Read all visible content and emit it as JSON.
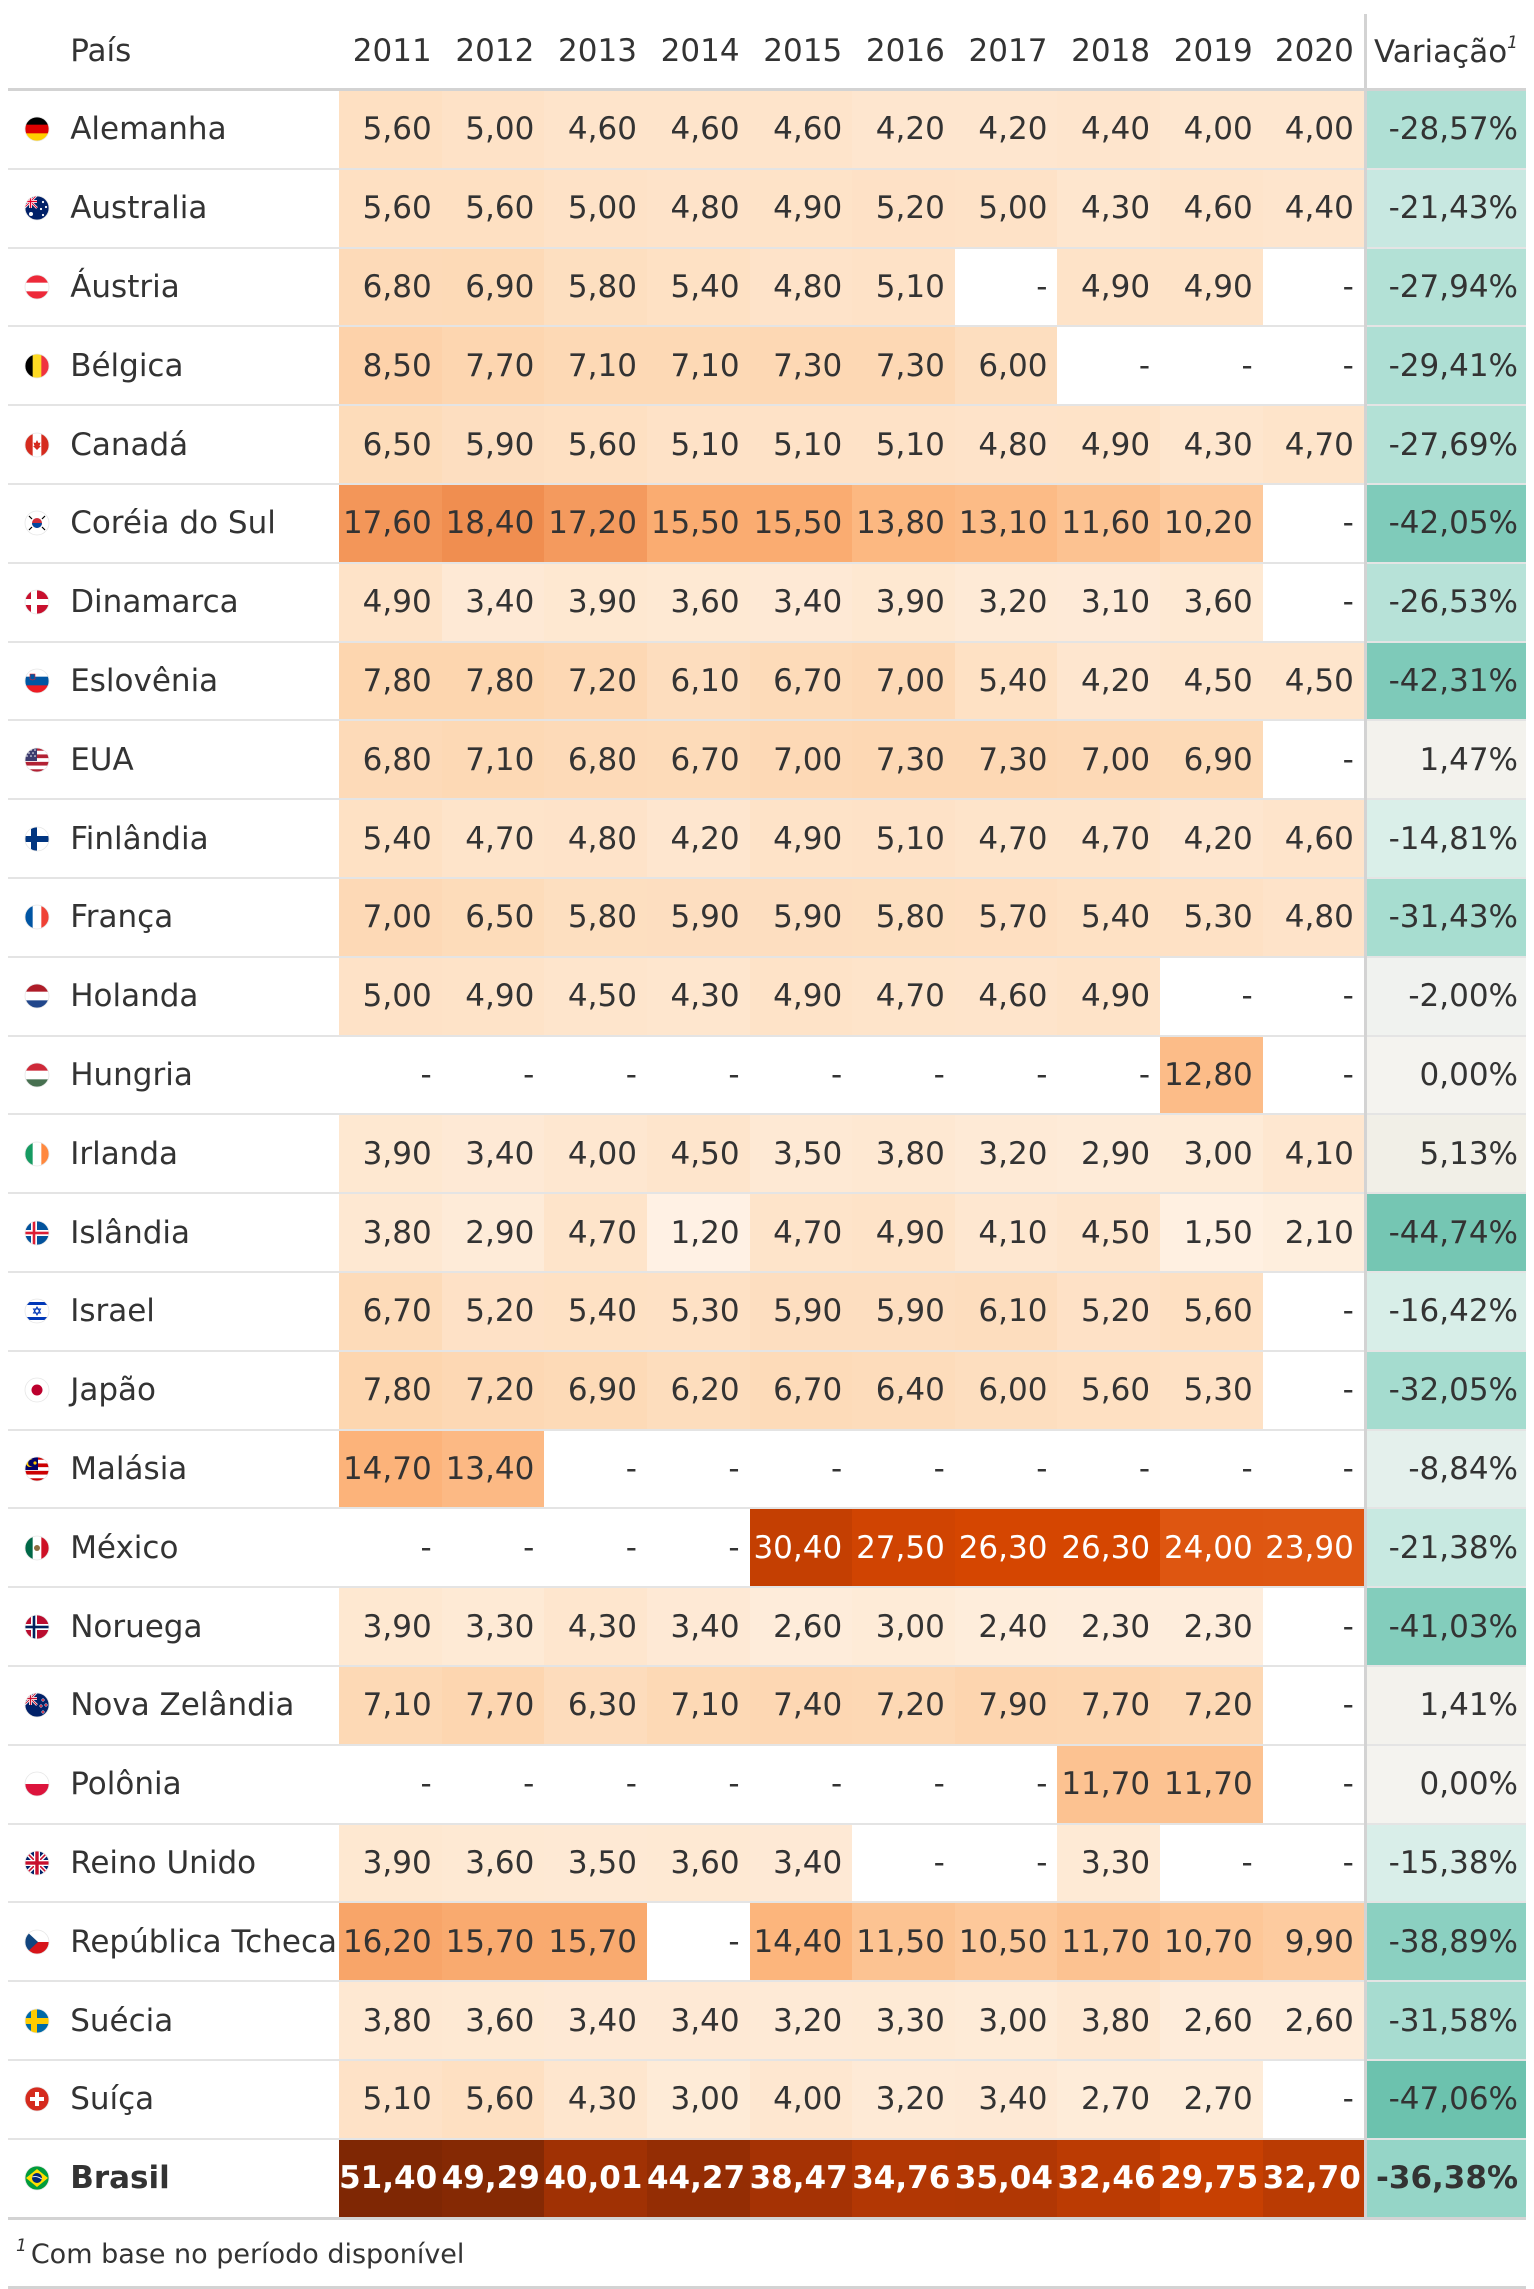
{
  "table": {
    "header": {
      "country": "País",
      "years": [
        "2011",
        "2012",
        "2013",
        "2014",
        "2015",
        "2016",
        "2017",
        "2018",
        "2019",
        "2020"
      ],
      "variation": "Variação",
      "variation_note_marker": "1"
    },
    "rows": [
      {
        "country": "Alemanha",
        "flag": "germany-flag-icon",
        "values": [
          "5,60",
          "5,00",
          "4,60",
          "4,60",
          "4,60",
          "4,20",
          "4,20",
          "4,40",
          "4,00",
          "4,00"
        ],
        "variation": "-28,57%"
      },
      {
        "country": "Australia",
        "flag": "australia-flag-icon",
        "values": [
          "5,60",
          "5,60",
          "5,00",
          "4,80",
          "4,90",
          "5,20",
          "5,00",
          "4,30",
          "4,60",
          "4,40"
        ],
        "variation": "-21,43%"
      },
      {
        "country": "Áustria",
        "flag": "austria-flag-icon",
        "values": [
          "6,80",
          "6,90",
          "5,80",
          "5,40",
          "4,80",
          "5,10",
          "-",
          "4,90",
          "4,90",
          "-"
        ],
        "variation": "-27,94%"
      },
      {
        "country": "Bélgica",
        "flag": "belgium-flag-icon",
        "values": [
          "8,50",
          "7,70",
          "7,10",
          "7,10",
          "7,30",
          "7,30",
          "6,00",
          "-",
          "-",
          "-"
        ],
        "variation": "-29,41%"
      },
      {
        "country": "Canadá",
        "flag": "canada-flag-icon",
        "values": [
          "6,50",
          "5,90",
          "5,60",
          "5,10",
          "5,10",
          "5,10",
          "4,80",
          "4,90",
          "4,30",
          "4,70"
        ],
        "variation": "-27,69%"
      },
      {
        "country": "Coréia do Sul",
        "flag": "south-korea-flag-icon",
        "values": [
          "17,60",
          "18,40",
          "17,20",
          "15,50",
          "15,50",
          "13,80",
          "13,10",
          "11,60",
          "10,20",
          "-"
        ],
        "variation": "-42,05%"
      },
      {
        "country": "Dinamarca",
        "flag": "denmark-flag-icon",
        "values": [
          "4,90",
          "3,40",
          "3,90",
          "3,60",
          "3,40",
          "3,90",
          "3,20",
          "3,10",
          "3,60",
          "-"
        ],
        "variation": "-26,53%"
      },
      {
        "country": "Eslovênia",
        "flag": "slovenia-flag-icon",
        "values": [
          "7,80",
          "7,80",
          "7,20",
          "6,10",
          "6,70",
          "7,00",
          "5,40",
          "4,20",
          "4,50",
          "4,50"
        ],
        "variation": "-42,31%"
      },
      {
        "country": "EUA",
        "flag": "usa-flag-icon",
        "values": [
          "6,80",
          "7,10",
          "6,80",
          "6,70",
          "7,00",
          "7,30",
          "7,30",
          "7,00",
          "6,90",
          "-"
        ],
        "variation": "1,47%"
      },
      {
        "country": "Finlândia",
        "flag": "finland-flag-icon",
        "values": [
          "5,40",
          "4,70",
          "4,80",
          "4,20",
          "4,90",
          "5,10",
          "4,70",
          "4,70",
          "4,20",
          "4,60"
        ],
        "variation": "-14,81%"
      },
      {
        "country": "França",
        "flag": "france-flag-icon",
        "values": [
          "7,00",
          "6,50",
          "5,80",
          "5,90",
          "5,90",
          "5,80",
          "5,70",
          "5,40",
          "5,30",
          "4,80"
        ],
        "variation": "-31,43%"
      },
      {
        "country": "Holanda",
        "flag": "netherlands-flag-icon",
        "values": [
          "5,00",
          "4,90",
          "4,50",
          "4,30",
          "4,90",
          "4,70",
          "4,60",
          "4,90",
          "-",
          "-"
        ],
        "variation": "-2,00%"
      },
      {
        "country": "Hungria",
        "flag": "hungary-flag-icon",
        "values": [
          "-",
          "-",
          "-",
          "-",
          "-",
          "-",
          "-",
          "-",
          "12,80",
          "-"
        ],
        "variation": "0,00%"
      },
      {
        "country": "Irlanda",
        "flag": "ireland-flag-icon",
        "values": [
          "3,90",
          "3,40",
          "4,00",
          "4,50",
          "3,50",
          "3,80",
          "3,20",
          "2,90",
          "3,00",
          "4,10"
        ],
        "variation": "5,13%"
      },
      {
        "country": "Islândia",
        "flag": "iceland-flag-icon",
        "values": [
          "3,80",
          "2,90",
          "4,70",
          "1,20",
          "4,70",
          "4,90",
          "4,10",
          "4,50",
          "1,50",
          "2,10"
        ],
        "variation": "-44,74%"
      },
      {
        "country": "Israel",
        "flag": "israel-flag-icon",
        "values": [
          "6,70",
          "5,20",
          "5,40",
          "5,30",
          "5,90",
          "5,90",
          "6,10",
          "5,20",
          "5,60",
          "-"
        ],
        "variation": "-16,42%"
      },
      {
        "country": "Japão",
        "flag": "japan-flag-icon",
        "values": [
          "7,80",
          "7,20",
          "6,90",
          "6,20",
          "6,70",
          "6,40",
          "6,00",
          "5,60",
          "5,30",
          "-"
        ],
        "variation": "-32,05%"
      },
      {
        "country": "Malásia",
        "flag": "malaysia-flag-icon",
        "values": [
          "14,70",
          "13,40",
          "-",
          "-",
          "-",
          "-",
          "-",
          "-",
          "-",
          "-"
        ],
        "variation": "-8,84%"
      },
      {
        "country": "México",
        "flag": "mexico-flag-icon",
        "values": [
          "-",
          "-",
          "-",
          "-",
          "30,40",
          "27,50",
          "26,30",
          "26,30",
          "24,00",
          "23,90"
        ],
        "variation": "-21,38%"
      },
      {
        "country": "Noruega",
        "flag": "norway-flag-icon",
        "values": [
          "3,90",
          "3,30",
          "4,30",
          "3,40",
          "2,60",
          "3,00",
          "2,40",
          "2,30",
          "2,30",
          "-"
        ],
        "variation": "-41,03%"
      },
      {
        "country": "Nova Zelândia",
        "flag": "new-zealand-flag-icon",
        "values": [
          "7,10",
          "7,70",
          "6,30",
          "7,10",
          "7,40",
          "7,20",
          "7,90",
          "7,70",
          "7,20",
          "-"
        ],
        "variation": "1,41%"
      },
      {
        "country": "Polônia",
        "flag": "poland-flag-icon",
        "values": [
          "-",
          "-",
          "-",
          "-",
          "-",
          "-",
          "-",
          "11,70",
          "11,70",
          "-"
        ],
        "variation": "0,00%"
      },
      {
        "country": "Reino Unido",
        "flag": "uk-flag-icon",
        "values": [
          "3,90",
          "3,60",
          "3,50",
          "3,60",
          "3,40",
          "-",
          "-",
          "3,30",
          "-",
          "-"
        ],
        "variation": "-15,38%"
      },
      {
        "country": "República Tcheca",
        "flag": "czech-flag-icon",
        "values": [
          "16,20",
          "15,70",
          "15,70",
          "-",
          "14,40",
          "11,50",
          "10,50",
          "11,70",
          "10,70",
          "9,90"
        ],
        "variation": "-38,89%"
      },
      {
        "country": "Suécia",
        "flag": "sweden-flag-icon",
        "values": [
          "3,80",
          "3,60",
          "3,40",
          "3,40",
          "3,20",
          "3,30",
          "3,00",
          "3,80",
          "2,60",
          "2,60"
        ],
        "variation": "-31,58%"
      },
      {
        "country": "Suíça",
        "flag": "switzerland-flag-icon",
        "values": [
          "5,10",
          "5,60",
          "4,30",
          "3,00",
          "4,00",
          "3,20",
          "3,40",
          "2,70",
          "2,70",
          "-"
        ],
        "variation": "-47,06%"
      },
      {
        "country": "Brasil",
        "flag": "brazil-flag-icon",
        "values": [
          "51,40",
          "49,29",
          "40,01",
          "44,27",
          "38,47",
          "34,76",
          "35,04",
          "32,46",
          "29,75",
          "32,70"
        ],
        "variation": "-36,38%",
        "highlight": true
      }
    ],
    "footnote": {
      "marker": "1",
      "text": "Com base no período disponível"
    }
  }
}
